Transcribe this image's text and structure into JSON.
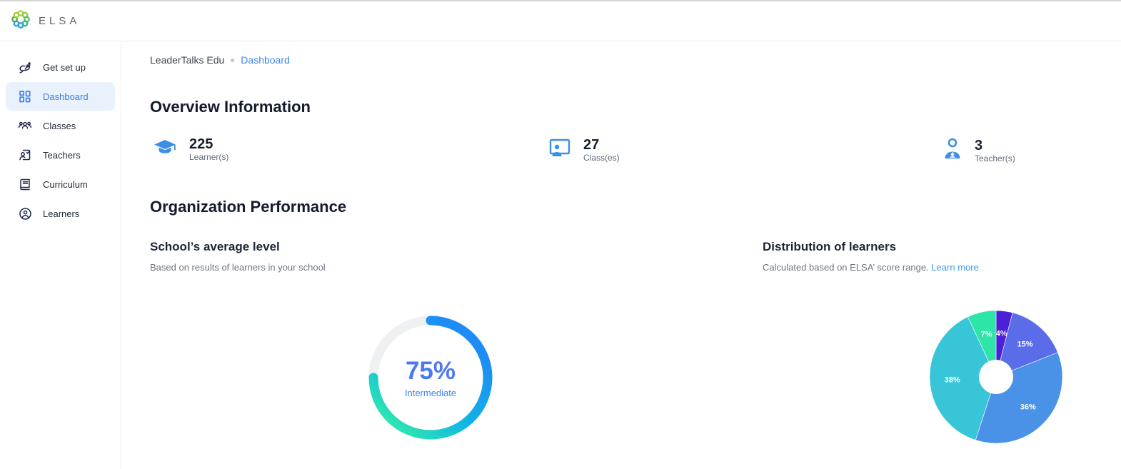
{
  "header": {
    "logo_text": "ELSA"
  },
  "sidebar": {
    "items": [
      {
        "label": "Get set up",
        "icon": "rocket-icon",
        "active": false
      },
      {
        "label": "Dashboard",
        "icon": "dashboard-grid-icon",
        "active": true
      },
      {
        "label": "Classes",
        "icon": "people-group-icon",
        "active": false
      },
      {
        "label": "Teachers",
        "icon": "teacher-card-icon",
        "active": false
      },
      {
        "label": "Curriculum",
        "icon": "book-icon",
        "active": false
      },
      {
        "label": "Learners",
        "icon": "person-circle-icon",
        "active": false
      }
    ]
  },
  "breadcrumb": {
    "org": "LeaderTalks Edu",
    "current": "Dashboard"
  },
  "overview": {
    "title": "Overview Information",
    "stats": [
      {
        "value": "225",
        "label": "Learner(s)",
        "icon": "graduation-cap-icon"
      },
      {
        "value": "27",
        "label": "Class(es)",
        "icon": "classroom-screen-icon"
      },
      {
        "value": "3",
        "label": "Teacher(s)",
        "icon": "teacher-person-icon"
      }
    ],
    "stat_icon_color": "#3d8fe5"
  },
  "performance": {
    "title": "Organization Performance",
    "average_level": {
      "title": "School’s average level",
      "subtitle": "Based on results of learners in your school",
      "percent_label": "75%",
      "level_label": "Intermediate"
    },
    "distribution": {
      "title": "Distribution of learners",
      "subtitle": "Calculated based on ELSA’ score range.",
      "link_label": "Learn more"
    }
  },
  "chart_data": [
    {
      "type": "donut-progress",
      "title": "School's average level",
      "value_percent": 75,
      "center_label": "75%",
      "center_sublabel": "Intermediate",
      "track_color": "#eef0f2",
      "gradient": [
        "#1d8df5",
        "#10b4e6",
        "#2be3b4"
      ],
      "direction": "clockwise",
      "start": "top"
    },
    {
      "type": "pie",
      "title": "Distribution of learners",
      "labels": [
        "4%",
        "15%",
        "36%",
        "38%",
        "7%"
      ],
      "values": [
        4,
        15,
        36,
        38,
        7
      ],
      "colors": [
        "#4c1fd9",
        "#5b6ce8",
        "#4a92e8",
        "#38c5d8",
        "#2ce5a7"
      ],
      "start_angle_deg": 0,
      "direction": "clockwise",
      "inner_radius_ratio": 0.25,
      "legend": "none"
    }
  ]
}
